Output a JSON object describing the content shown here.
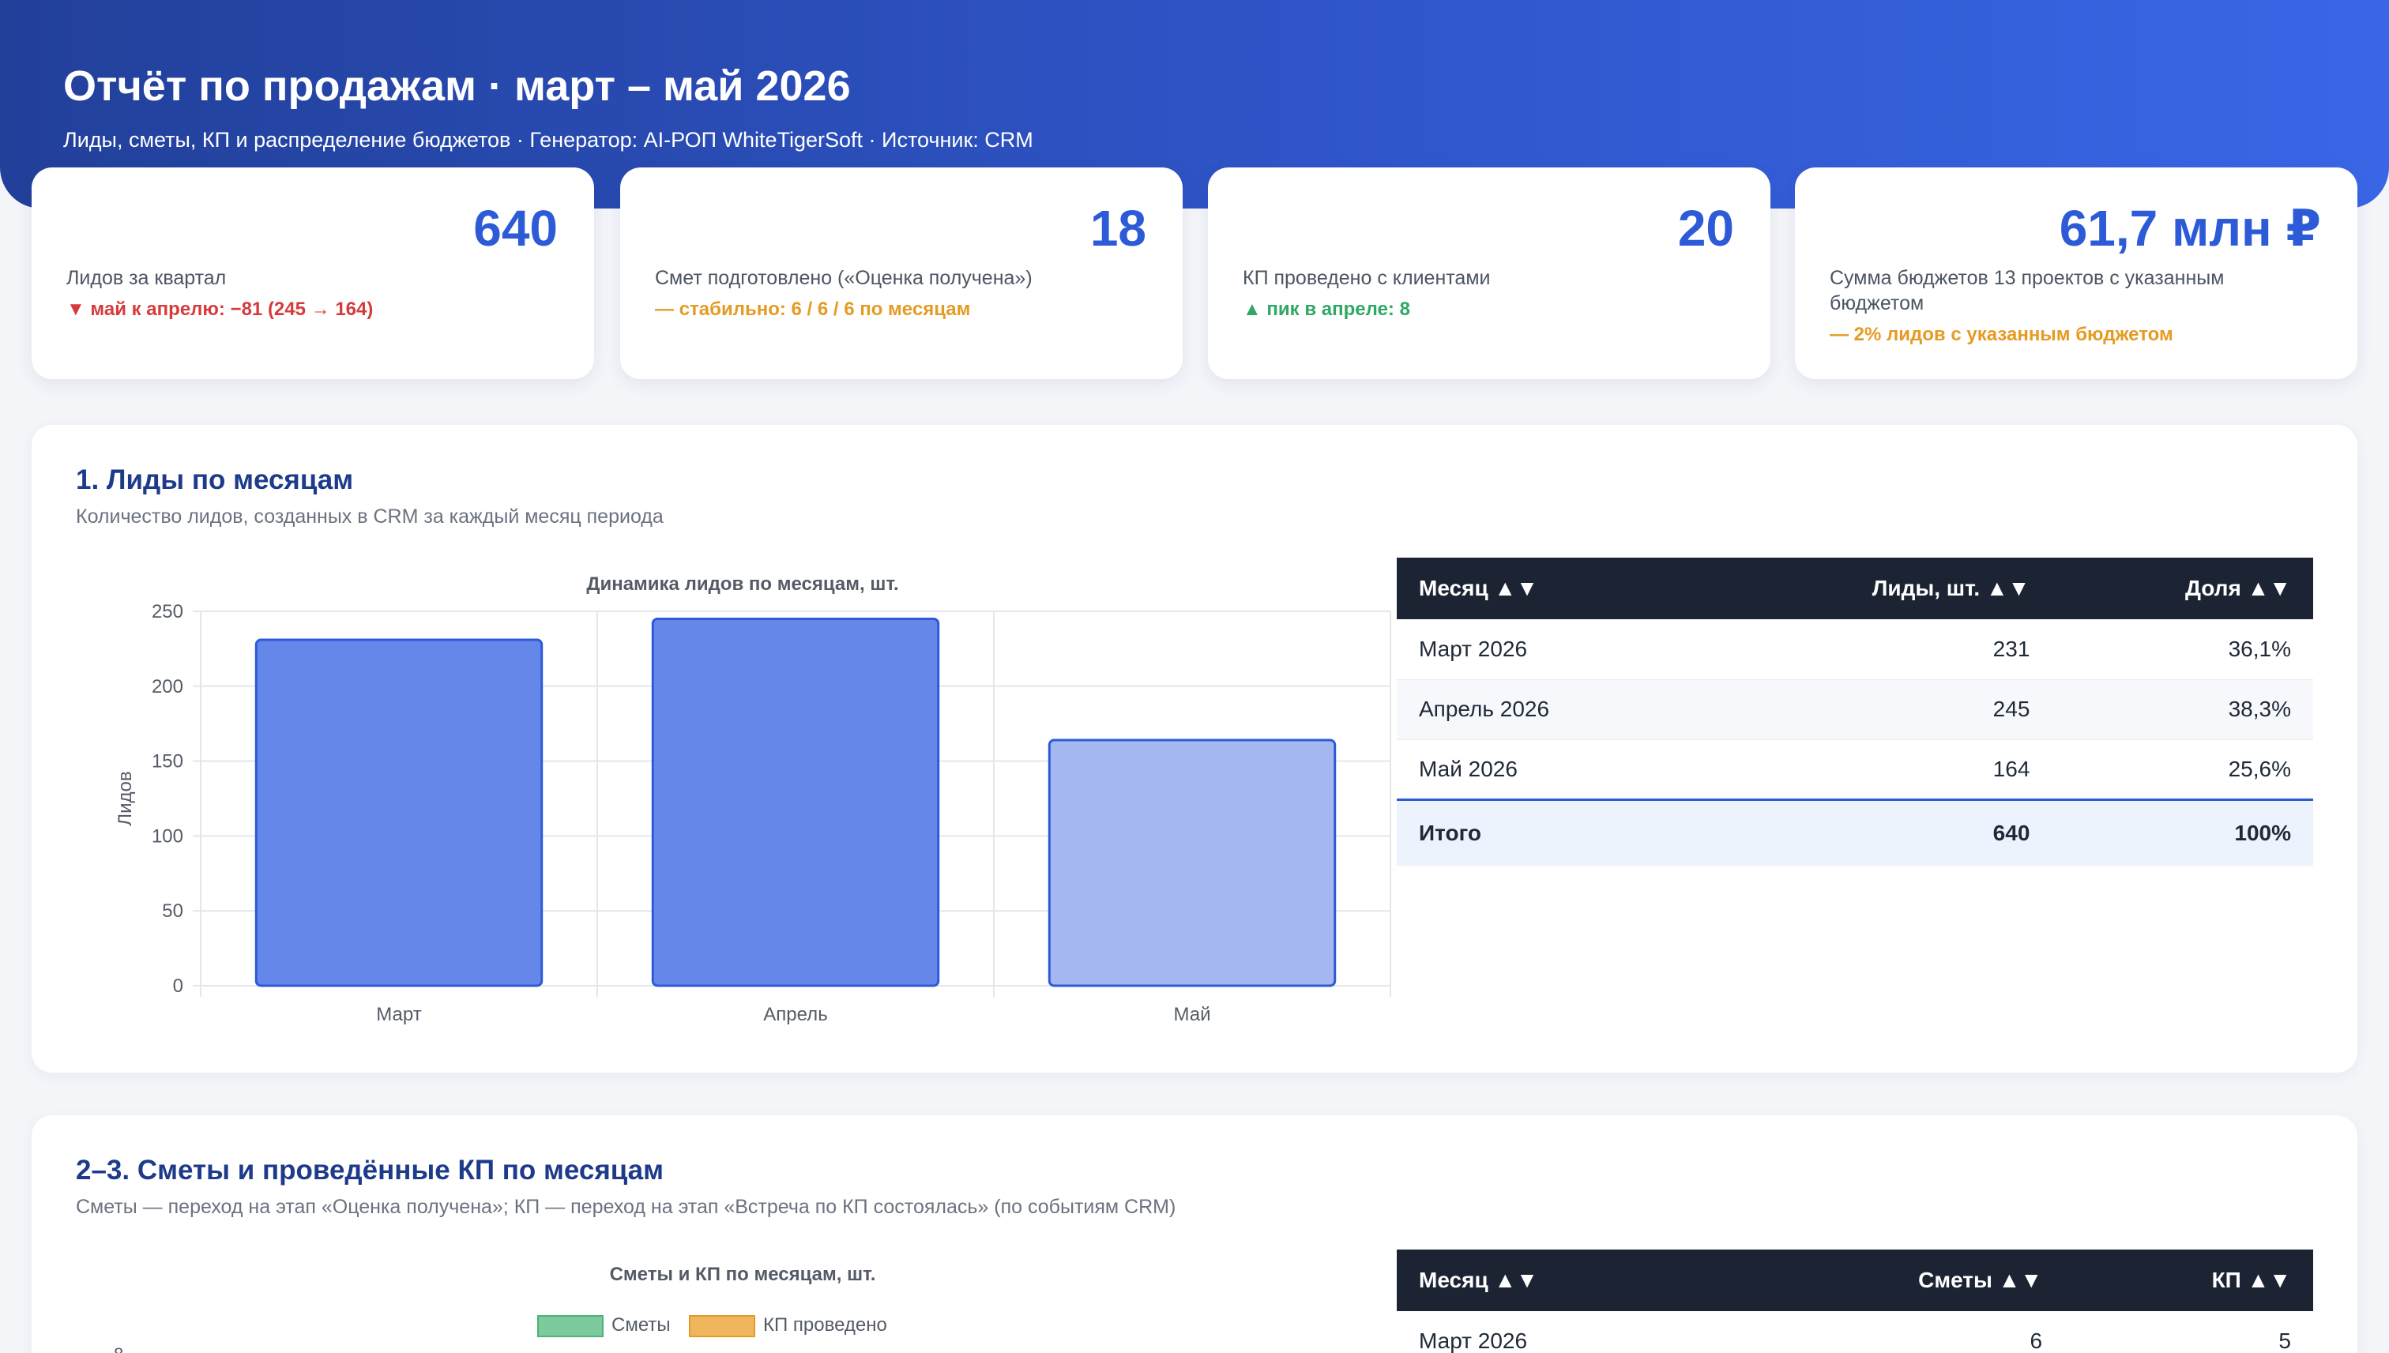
{
  "header": {
    "title": "Отчёт по продажам · март – май 2026",
    "subtitle": "Лиды, сметы, КП и распределение бюджетов · Генератор: AI-РОП WhiteTigerSoft · Источник: CRM"
  },
  "kpis": [
    {
      "value": "640",
      "label": "Лидов за квартал",
      "note": "▼ май к апрелю: −81 (245 → 164)",
      "tone": "red"
    },
    {
      "value": "18",
      "label": "Смет подготовлено («Оценка получена»)",
      "note": "— стабильно: 6 / 6 / 6 по месяцам",
      "tone": "orange"
    },
    {
      "value": "20",
      "label": "КП проведено с клиентами",
      "note": "▲ пик в апреле: 8",
      "tone": "green"
    },
    {
      "value": "61,7 млн ₽",
      "label": "Сумма бюджетов 13 проектов с указанным бюджетом",
      "note": "— 2% лидов с указанным бюджетом",
      "tone": "orange"
    }
  ],
  "section1": {
    "title": "1. Лиды по месяцам",
    "description": "Количество лидов, созданных в CRM за каждый месяц периода",
    "table": {
      "headers": [
        "Месяц ▲▼",
        "Лиды, шт. ▲▼",
        "Доля ▲▼"
      ],
      "rows": [
        [
          "Март 2026",
          "231",
          "36,1%"
        ],
        [
          "Апрель 2026",
          "245",
          "38,3%"
        ],
        [
          "Май 2026",
          "164",
          "25,6%"
        ]
      ],
      "total": [
        "Итого",
        "640",
        "100%"
      ]
    }
  },
  "section2": {
    "title": "2–3. Сметы и проведённые КП по месяцам",
    "description": "Сметы — переход на этап «Оценка получена»; КП — переход на этап «Встреча по КП состоялась» (по событиям CRM)",
    "table": {
      "headers": [
        "Месяц ▲▼",
        "Сметы ▲▼",
        "КП ▲▼"
      ],
      "rows": [
        [
          "Март 2026",
          "6",
          "5"
        ]
      ]
    }
  },
  "chart_data": [
    {
      "type": "bar",
      "title": "Динамика лидов по месяцам, шт.",
      "categories": [
        "Март",
        "Апрель",
        "Май"
      ],
      "values": [
        231,
        245,
        164
      ],
      "ylabel": "Лидов",
      "ylim": [
        0,
        250
      ],
      "yticks": [
        0,
        50,
        100,
        150,
        200,
        250
      ],
      "grid": true,
      "colors": [
        "#6687ea",
        "#6687ea",
        "#a5b7f1"
      ],
      "edge_color": "#2d5bd8"
    },
    {
      "type": "bar",
      "title": "Сметы и КП по месяцам, шт.",
      "series": [
        {
          "name": "Сметы",
          "color": "#7dcb9c"
        },
        {
          "name": "КП проведено",
          "color": "#f0b65e"
        }
      ],
      "visible_ytick": "8"
    }
  ]
}
